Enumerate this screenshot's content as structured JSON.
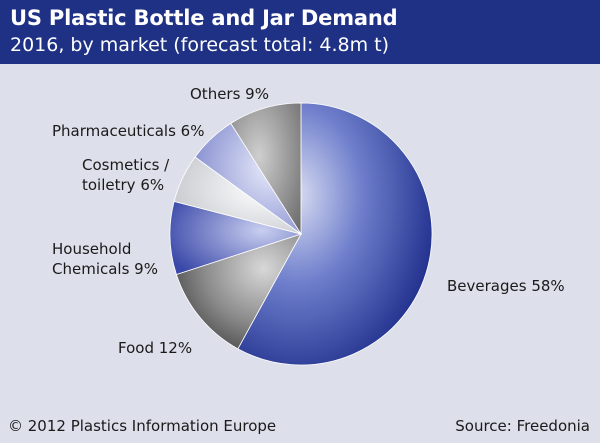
{
  "header": {
    "title": "US Plastic Bottle and Jar Demand",
    "subtitle": "2016, by market (forecast total: 4.8m t)"
  },
  "footer": {
    "copyright": "© 2012 Plastics Information Europe",
    "source": "Source: Freedonia"
  },
  "chart_data": {
    "type": "pie",
    "title": "US Plastic Bottle and Jar Demand",
    "subtitle": "2016, by market (forecast total: 4.8m t)",
    "unit": "%",
    "categories": [
      "Beverages",
      "Food",
      "Household Chemicals",
      "Cosmetics / toiletry",
      "Pharmaceuticals",
      "Others"
    ],
    "values": [
      58,
      12,
      9,
      6,
      6,
      9
    ],
    "labels": [
      "Beverages 58%",
      "Food 12%",
      "Household Chemicals 9%",
      "Cosmetics / toiletry 6%",
      "Pharmaceuticals 6%",
      "Others 9%"
    ],
    "colors": [
      "#2a3c9c",
      "#6e6e6e",
      "#4452b0",
      "#d4d6dc",
      "#8b93d0",
      "#8a8a8a"
    ],
    "legend": "none (labels placed beside slices)"
  }
}
